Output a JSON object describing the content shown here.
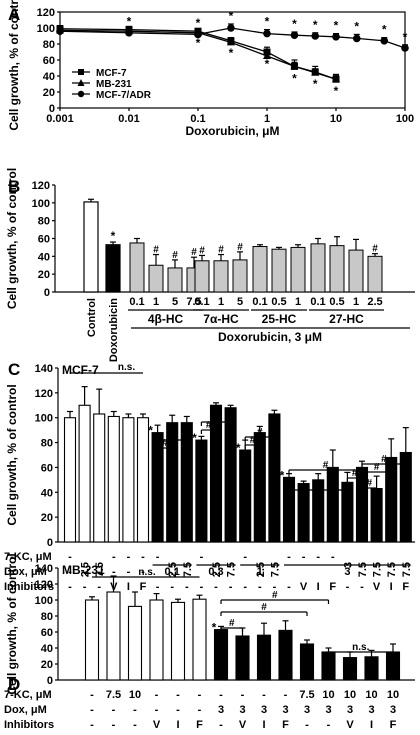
{
  "chart_data": [
    {
      "panel": "A",
      "type": "line",
      "xlabel": "Doxorubicin, μM",
      "ylabel": "Cell growth, % of control",
      "xscale": "log",
      "xlim": [
        0.001,
        100
      ],
      "ylim": [
        0,
        120
      ],
      "xticks": [
        "0.001",
        "0.01",
        "0.1",
        "1",
        "10",
        "100"
      ],
      "yticks": [
        "0",
        "20",
        "40",
        "60",
        "80",
        "100",
        "120"
      ],
      "legend_position": "lower-left",
      "series": [
        {
          "name": "MCF-7",
          "marker": "square",
          "x": [
            0.001,
            0.01,
            0.1,
            0.3,
            1,
            2.5,
            5,
            10
          ],
          "y": [
            99,
            98,
            96,
            84,
            70,
            52,
            45,
            36
          ],
          "err": [
            4,
            4,
            3,
            4,
            6,
            8,
            7,
            6
          ],
          "sig": [
            false,
            false,
            true,
            true,
            true,
            true,
            true,
            true
          ]
        },
        {
          "name": "MB-231",
          "marker": "triangle",
          "x": [
            0.001,
            0.01,
            0.1,
            0.3,
            1,
            2.5,
            5,
            10
          ],
          "y": [
            97,
            96,
            94,
            82,
            65,
            52,
            44,
            36
          ],
          "err": [
            4,
            4,
            4,
            5,
            5,
            5,
            5,
            5
          ],
          "sig": [
            false,
            false,
            false,
            false,
            false,
            false,
            false,
            false
          ]
        },
        {
          "name": "MCF-7/ADR",
          "marker": "circle",
          "x": [
            0.001,
            0.01,
            0.1,
            0.3,
            1,
            2.5,
            5,
            10,
            20,
            50,
            100
          ],
          "y": [
            96,
            94,
            92,
            100,
            93,
            91,
            90,
            89,
            87,
            84,
            75
          ],
          "err": [
            4,
            4,
            4,
            5,
            5,
            4,
            4,
            4,
            5,
            4,
            4
          ],
          "sig": [
            false,
            true,
            true,
            true,
            true,
            true,
            true,
            true,
            true,
            true,
            true
          ]
        }
      ]
    },
    {
      "panel": "B",
      "type": "bar",
      "ylabel": "Cell growth, % of control",
      "ylim": [
        0,
        120
      ],
      "yticks": [
        "0",
        "20",
        "40",
        "60",
        "80",
        "100",
        "120"
      ],
      "xlabel": "Doxorubicin, 3 μM",
      "control_labels": [
        "Control",
        "Doxorubicin"
      ],
      "control_values": [
        101,
        53
      ],
      "control_err": [
        3,
        3
      ],
      "control_sig": [
        "",
        "*"
      ],
      "groups": [
        {
          "name": "4β-HC",
          "doses": [
            "0.1",
            "1",
            "5",
            "7.5"
          ],
          "values": [
            55,
            30,
            27,
            27
          ],
          "err": [
            5,
            12,
            9,
            12
          ],
          "sig": [
            "",
            "#",
            "#",
            "#"
          ]
        },
        {
          "name": "7α-HC",
          "doses": [
            "0.1",
            "1",
            "5"
          ],
          "values": [
            35,
            35,
            36
          ],
          "err": [
            6,
            7,
            9
          ],
          "sig": [
            "#",
            "#",
            "#"
          ]
        },
        {
          "name": "25-HC",
          "doses": [
            "0.1",
            "0.5",
            "1"
          ],
          "values": [
            51,
            48,
            50
          ],
          "err": [
            2,
            2,
            3
          ],
          "sig": [
            "",
            "",
            ""
          ]
        },
        {
          "name": "27-HC",
          "doses": [
            "0.1",
            "0.5",
            "1",
            "2.5"
          ],
          "values": [
            54,
            52,
            47,
            40
          ],
          "err": [
            6,
            10,
            12,
            3
          ],
          "sig": [
            "",
            "",
            "",
            "#"
          ]
        }
      ]
    },
    {
      "panel": "C",
      "type": "bar",
      "cell_line": "MCF-7",
      "ylabel": "Cell growth, % of control",
      "ylim": [
        0,
        140
      ],
      "yticks": [
        "0",
        "20",
        "40",
        "60",
        "80",
        "100",
        "120",
        "140"
      ],
      "row_labels": [
        "7-KC, μM",
        "Dox, μM",
        "Inhibitors"
      ],
      "bars": [
        {
          "kc": "-",
          "dox": "-",
          "inh": "-",
          "value": 100,
          "err": 5,
          "fill": "white"
        },
        {
          "kc": "2.5",
          "dox": "-",
          "inh": "-",
          "value": 110,
          "err": 15,
          "fill": "white"
        },
        {
          "kc": "7.5",
          "dox": "-",
          "inh": "-",
          "value": 103,
          "err": 20,
          "fill": "white"
        },
        {
          "kc": "-",
          "dox": "-",
          "inh": "V",
          "value": 101,
          "err": 4,
          "fill": "white"
        },
        {
          "kc": "-",
          "dox": "-",
          "inh": "I",
          "value": 100,
          "err": 3,
          "fill": "white"
        },
        {
          "kc": "-",
          "dox": "-",
          "inh": "F",
          "value": 100,
          "err": 3,
          "fill": "white"
        },
        {
          "kc": "-",
          "dox": "0.1",
          "inh": "-",
          "value": 88,
          "err": 6,
          "fill": "black",
          "sig": "*"
        },
        {
          "kc": "2.5",
          "dox": "0.1",
          "inh": "-",
          "value": 96,
          "err": 6,
          "fill": "black"
        },
        {
          "kc": "7.5",
          "dox": "0.1",
          "inh": "-",
          "value": 96,
          "err": 5,
          "fill": "black"
        },
        {
          "kc": "-",
          "dox": "0.3",
          "inh": "-",
          "value": 82,
          "err": 3,
          "fill": "black",
          "sig": "*"
        },
        {
          "kc": "2.5",
          "dox": "0.3",
          "inh": "-",
          "value": 110,
          "err": 2,
          "fill": "black"
        },
        {
          "kc": "7.5",
          "dox": "0.3",
          "inh": "-",
          "value": 108,
          "err": 2,
          "fill": "black"
        },
        {
          "kc": "-",
          "dox": "1",
          "inh": "-",
          "value": 74,
          "err": 8,
          "fill": "black",
          "sig": "*"
        },
        {
          "kc": "2.5",
          "dox": "1",
          "inh": "-",
          "value": 88,
          "err": 5,
          "fill": "black"
        },
        {
          "kc": "7.5",
          "dox": "1",
          "inh": "-",
          "value": 103,
          "err": 3,
          "fill": "black"
        },
        {
          "kc": "-",
          "dox": "3",
          "inh": "-",
          "value": 52,
          "err": 3,
          "fill": "black",
          "sig": "*"
        },
        {
          "kc": "-",
          "dox": "3",
          "inh": "V",
          "value": 47,
          "err": 2,
          "fill": "black"
        },
        {
          "kc": "-",
          "dox": "3",
          "inh": "I",
          "value": 50,
          "err": 5,
          "fill": "black"
        },
        {
          "kc": "-",
          "dox": "3",
          "inh": "F",
          "value": 60,
          "err": 14,
          "fill": "black"
        },
        {
          "kc": "3",
          "dox": "3",
          "inh": "-",
          "value": 48,
          "err": 8,
          "fill": "black"
        },
        {
          "kc": "7.5",
          "dox": "3",
          "inh": "-",
          "value": 60,
          "err": 5,
          "fill": "black"
        },
        {
          "kc": "7.5",
          "dox": "3",
          "inh": "V",
          "value": 43,
          "err": 10,
          "fill": "black"
        },
        {
          "kc": "7.5",
          "dox": "3",
          "inh": "I",
          "value": 68,
          "err": 15,
          "fill": "black"
        },
        {
          "kc": "7.5",
          "dox": "3",
          "inh": "F",
          "value": 72,
          "err": 20,
          "fill": "black"
        }
      ],
      "dox_group_labels": [
        {
          "label": "0.1",
          "from": 6,
          "to": 8
        },
        {
          "label": "0.3",
          "from": 9,
          "to": 11
        },
        {
          "label": "1",
          "from": 12,
          "to": 14
        },
        {
          "label": "3",
          "from": 15,
          "to": 23
        }
      ],
      "annotations": {
        "ns": "n.s.",
        "hash": "#"
      }
    },
    {
      "panel": "D",
      "type": "bar",
      "cell_line": "MB-231",
      "ylabel": "Cell growth, % of control",
      "ylim": [
        0,
        140
      ],
      "yticks": [
        "0",
        "20",
        "40",
        "60",
        "80",
        "100",
        "120",
        "140"
      ],
      "row_labels": [
        "7-KC, μM",
        "Dox, μM",
        "Inhibitors"
      ],
      "bars": [
        {
          "kc": "-",
          "dox": "-",
          "inh": "-",
          "value": 100,
          "err": 4,
          "fill": "white"
        },
        {
          "kc": "7.5",
          "dox": "-",
          "inh": "-",
          "value": 110,
          "err": 20,
          "fill": "white"
        },
        {
          "kc": "10",
          "dox": "-",
          "inh": "-",
          "value": 92,
          "err": 18,
          "fill": "white"
        },
        {
          "kc": "-",
          "dox": "-",
          "inh": "V",
          "value": 100,
          "err": 8,
          "fill": "white"
        },
        {
          "kc": "-",
          "dox": "-",
          "inh": "I",
          "value": 97,
          "err": 4,
          "fill": "white"
        },
        {
          "kc": "-",
          "dox": "-",
          "inh": "F",
          "value": 101,
          "err": 5,
          "fill": "white"
        },
        {
          "kc": "-",
          "dox": "3",
          "inh": "-",
          "value": 63,
          "err": 4,
          "fill": "black",
          "sig": "*"
        },
        {
          "kc": "-",
          "dox": "3",
          "inh": "V",
          "value": 55,
          "err": 10,
          "fill": "black"
        },
        {
          "kc": "-",
          "dox": "3",
          "inh": "I",
          "value": 56,
          "err": 15,
          "fill": "black"
        },
        {
          "kc": "-",
          "dox": "3",
          "inh": "F",
          "value": 62,
          "err": 12,
          "fill": "black"
        },
        {
          "kc": "7.5",
          "dox": "3",
          "inh": "-",
          "value": 45,
          "err": 5,
          "fill": "black"
        },
        {
          "kc": "10",
          "dox": "3",
          "inh": "-",
          "value": 35,
          "err": 5,
          "fill": "black"
        },
        {
          "kc": "10",
          "dox": "3",
          "inh": "V",
          "value": 28,
          "err": 7,
          "fill": "black"
        },
        {
          "kc": "10",
          "dox": "3",
          "inh": "I",
          "value": 29,
          "err": 8,
          "fill": "black"
        },
        {
          "kc": "10",
          "dox": "3",
          "inh": "F",
          "value": 35,
          "err": 10,
          "fill": "black"
        }
      ],
      "annotations": {
        "ns": "n.s.",
        "hash": "#"
      }
    }
  ]
}
